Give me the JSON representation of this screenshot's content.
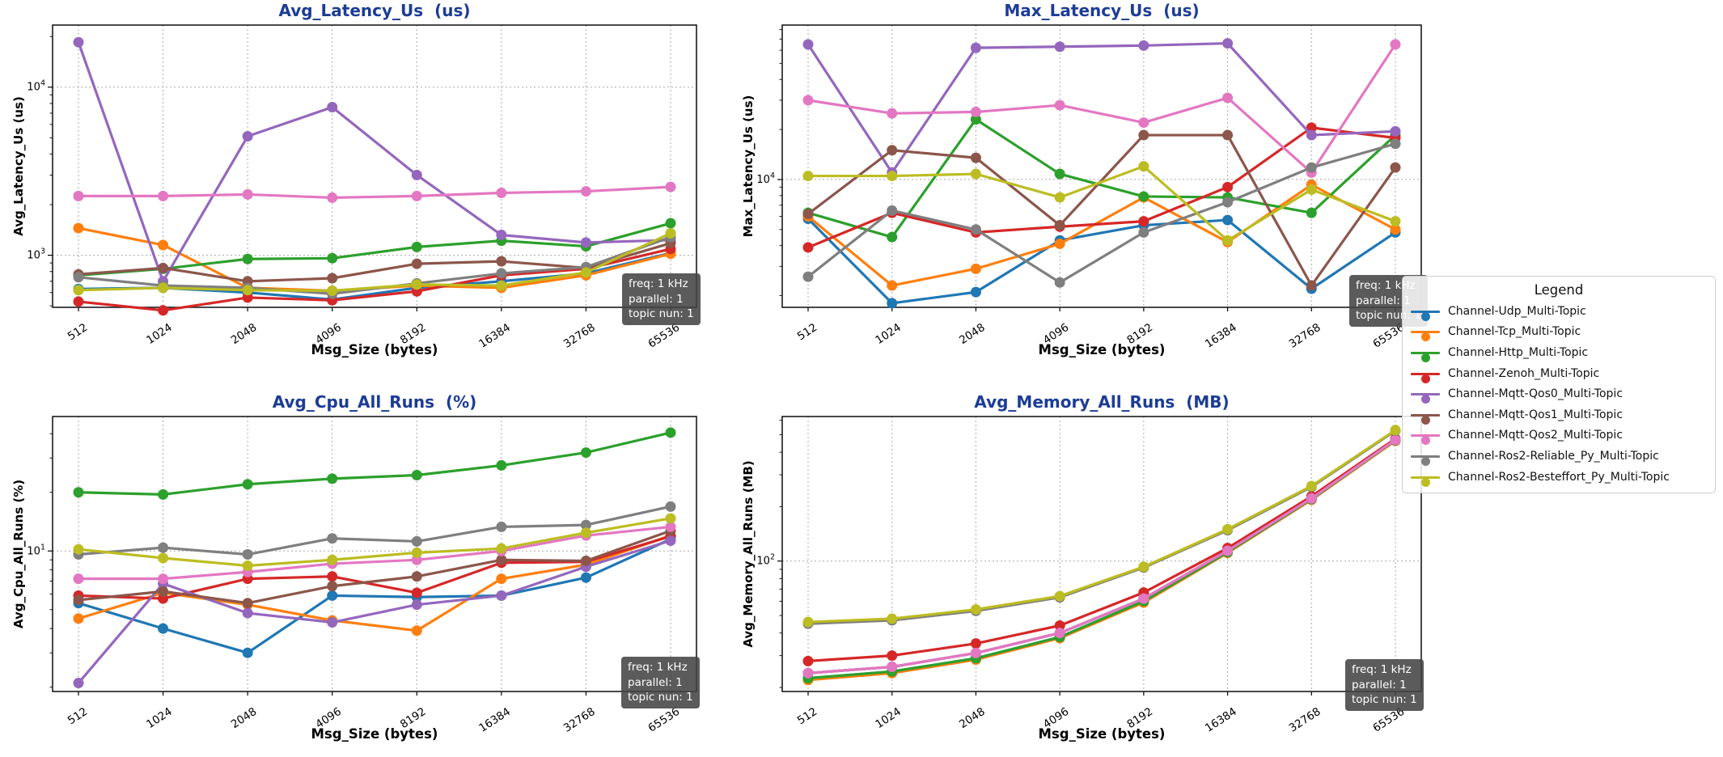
{
  "title_color": "#1c3c96",
  "legend": {
    "title": "Legend"
  },
  "annotation": {
    "lines": [
      "freq: 1 kHz",
      "parallel: 1",
      "topic nun: 1"
    ]
  },
  "xlabel": "Msg_Size (bytes)",
  "x_categories": [
    "512",
    "1024",
    "2048",
    "4096",
    "8192",
    "16384",
    "32768",
    "65536"
  ],
  "channels": [
    {
      "id": "udp",
      "label": "Channel-Udp_Multi-Topic",
      "color": "#1f77b4"
    },
    {
      "id": "tcp",
      "label": "Channel-Tcp_Multi-Topic",
      "color": "#ff7f0e"
    },
    {
      "id": "http",
      "label": "Channel-Http_Multi-Topic",
      "color": "#2ca02c"
    },
    {
      "id": "zenoh",
      "label": "Channel-Zenoh_Multi-Topic",
      "color": "#d62728"
    },
    {
      "id": "qos0",
      "label": "Channel-Mqtt-Qos0_Multi-Topic",
      "color": "#9467bd"
    },
    {
      "id": "qos1",
      "label": "Channel-Mqtt-Qos1_Multi-Topic",
      "color": "#8c564b"
    },
    {
      "id": "qos2",
      "label": "Channel-Mqtt-Qos2_Multi-Topic",
      "color": "#e377c2"
    },
    {
      "id": "ros2r",
      "label": "Channel-Ros2-Reliable_Py_Multi-Topic",
      "color": "#7f7f7f"
    },
    {
      "id": "ros2b",
      "label": "Channel-Ros2-Besteffort_Py_Multi-Topic",
      "color": "#bcbd22"
    }
  ],
  "chart_data": [
    {
      "type": "line",
      "title": "Avg_Latency_Us  (us)",
      "ylabel": "Avg_Latency_Us (us)",
      "xlabel": "Msg_Size (bytes)",
      "yscale": "log",
      "ylim": [
        490,
        23400
      ],
      "y_gridlines": [
        1000,
        10000
      ],
      "categories": [
        "512",
        "1024",
        "2048",
        "4096",
        "8192",
        "16384",
        "32768",
        "65536"
      ],
      "grid": true,
      "series": [
        {
          "channel": "udp",
          "values": [
            630,
            640,
            600,
            545,
            640,
            700,
            780,
            1030
          ]
        },
        {
          "channel": "tcp",
          "values": [
            1450,
            1150,
            640,
            615,
            660,
            640,
            760,
            1020
          ]
        },
        {
          "channel": "http",
          "values": [
            760,
            830,
            950,
            960,
            1120,
            1220,
            1130,
            1550
          ]
        },
        {
          "channel": "zenoh",
          "values": [
            530,
            470,
            560,
            540,
            610,
            760,
            830,
            1090
          ]
        },
        {
          "channel": "qos0",
          "values": [
            18500,
            700,
            5100,
            7600,
            3000,
            1320,
            1190,
            1230
          ]
        },
        {
          "channel": "qos1",
          "values": [
            770,
            840,
            700,
            730,
            890,
            920,
            840,
            1180
          ]
        },
        {
          "channel": "qos2",
          "values": [
            2250,
            2250,
            2300,
            2200,
            2250,
            2350,
            2400,
            2550
          ]
        },
        {
          "channel": "ros2r",
          "values": [
            740,
            660,
            640,
            590,
            680,
            780,
            850,
            1280
          ]
        },
        {
          "channel": "ros2b",
          "values": [
            620,
            640,
            620,
            615,
            670,
            660,
            790,
            1350
          ]
        }
      ]
    },
    {
      "type": "line",
      "title": "Max_Latency_Us  (us)",
      "ylabel": "Max_Latency_Us (us)",
      "xlabel": "Msg_Size (bytes)",
      "yscale": "log",
      "ylim": [
        1700,
        85000
      ],
      "y_gridlines": [
        10000
      ],
      "categories": [
        "512",
        "1024",
        "2048",
        "4096",
        "8192",
        "16384",
        "32768",
        "65536"
      ],
      "grid": true,
      "series": [
        {
          "channel": "udp",
          "values": [
            5800,
            1800,
            2100,
            4300,
            5300,
            5700,
            2200,
            4800
          ]
        },
        {
          "channel": "tcp",
          "values": [
            6000,
            2300,
            2900,
            4100,
            7800,
            4200,
            9300,
            5000
          ]
        },
        {
          "channel": "http",
          "values": [
            6300,
            4500,
            23000,
            10800,
            7900,
            7800,
            6300,
            18500
          ]
        },
        {
          "channel": "zenoh",
          "values": [
            3900,
            6300,
            4800,
            5200,
            5600,
            9000,
            20500,
            17800
          ]
        },
        {
          "channel": "qos0",
          "values": [
            65000,
            11000,
            62000,
            63000,
            64000,
            66000,
            18500,
            19500
          ]
        },
        {
          "channel": "qos1",
          "values": [
            6200,
            15000,
            13500,
            5300,
            18500,
            18500,
            2300,
            11800
          ]
        },
        {
          "channel": "qos2",
          "values": [
            30000,
            25000,
            25500,
            28000,
            22000,
            31000,
            11000,
            65000
          ]
        },
        {
          "channel": "ros2r",
          "values": [
            2600,
            6500,
            5000,
            2400,
            4800,
            7300,
            11800,
            16400
          ]
        },
        {
          "channel": "ros2b",
          "values": [
            10500,
            10500,
            10800,
            7800,
            12000,
            4300,
            8700,
            5600
          ]
        }
      ]
    },
    {
      "type": "line",
      "title": "Avg_Cpu_All_Runs  (%)",
      "ylabel": "Avg_Cpu_All_Runs (%)",
      "xlabel": "Msg_Size (bytes)",
      "yscale": "log",
      "ylim": [
        1.9,
        49
      ],
      "y_gridlines": [
        10
      ],
      "categories": [
        "512",
        "1024",
        "2048",
        "4096",
        "8192",
        "16384",
        "32768",
        "65536"
      ],
      "grid": true,
      "series": [
        {
          "channel": "udp",
          "values": [
            5.4,
            4.0,
            3.0,
            5.9,
            5.8,
            5.9,
            7.3,
            11.5
          ]
        },
        {
          "channel": "tcp",
          "values": [
            4.5,
            6.1,
            5.3,
            4.4,
            3.9,
            7.2,
            8.5,
            12.0
          ]
        },
        {
          "channel": "http",
          "values": [
            20,
            19.5,
            22,
            23.5,
            24.5,
            27.5,
            32,
            40.5
          ]
        },
        {
          "channel": "zenoh",
          "values": [
            5.9,
            5.7,
            7.2,
            7.4,
            6.1,
            8.7,
            8.8,
            11.9
          ]
        },
        {
          "channel": "qos0",
          "values": [
            2.1,
            6.8,
            4.8,
            4.3,
            5.3,
            5.9,
            8.3,
            11.3
          ]
        },
        {
          "channel": "qos1",
          "values": [
            5.6,
            6.2,
            5.4,
            6.6,
            7.4,
            9.0,
            8.9,
            12.7
          ]
        },
        {
          "channel": "qos2",
          "values": [
            7.2,
            7.2,
            7.8,
            8.6,
            9.0,
            10.0,
            12.0,
            13.3
          ]
        },
        {
          "channel": "ros2r",
          "values": [
            9.6,
            10.4,
            9.6,
            11.6,
            11.2,
            13.3,
            13.6,
            16.9
          ]
        },
        {
          "channel": "ros2b",
          "values": [
            10.2,
            9.2,
            8.4,
            9.0,
            9.8,
            10.3,
            12.4,
            14.7
          ]
        }
      ]
    },
    {
      "type": "line",
      "title": "Avg_Memory_All_Runs  (MB)",
      "ylabel": "Avg_Memory_All_Runs (MB)",
      "xlabel": "Msg_Size (bytes)",
      "yscale": "log",
      "ylim": [
        19,
        630
      ],
      "y_gridlines": [
        100
      ],
      "categories": [
        "512",
        "1024",
        "2048",
        "4096",
        "8192",
        "16384",
        "32768",
        "65536"
      ],
      "grid": true,
      "series": [
        {
          "channel": "udp",
          "values": [
            22.5,
            24.5,
            29,
            38,
            60,
            112,
            220,
            465
          ]
        },
        {
          "channel": "tcp",
          "values": [
            22,
            24,
            28.5,
            37.5,
            59,
            111,
            218,
            462
          ]
        },
        {
          "channel": "http",
          "values": [
            22.5,
            24.5,
            29,
            38,
            60,
            112,
            220,
            465
          ]
        },
        {
          "channel": "zenoh",
          "values": [
            28,
            30,
            35,
            44,
            67,
            118,
            228,
            475
          ]
        },
        {
          "channel": "qos0",
          "values": [
            24,
            26,
            31,
            40,
            62,
            114,
            222,
            468
          ]
        },
        {
          "channel": "qos1",
          "values": [
            24,
            26,
            31,
            40,
            62,
            114,
            222,
            468
          ]
        },
        {
          "channel": "qos2",
          "values": [
            24,
            26,
            31,
            40,
            62,
            114,
            222,
            468
          ]
        },
        {
          "channel": "ros2r",
          "values": [
            45,
            47,
            53,
            63,
            92,
            148,
            257,
            526
          ]
        },
        {
          "channel": "ros2b",
          "values": [
            46,
            48,
            54,
            64,
            93,
            150,
            260,
            530
          ]
        }
      ]
    }
  ]
}
